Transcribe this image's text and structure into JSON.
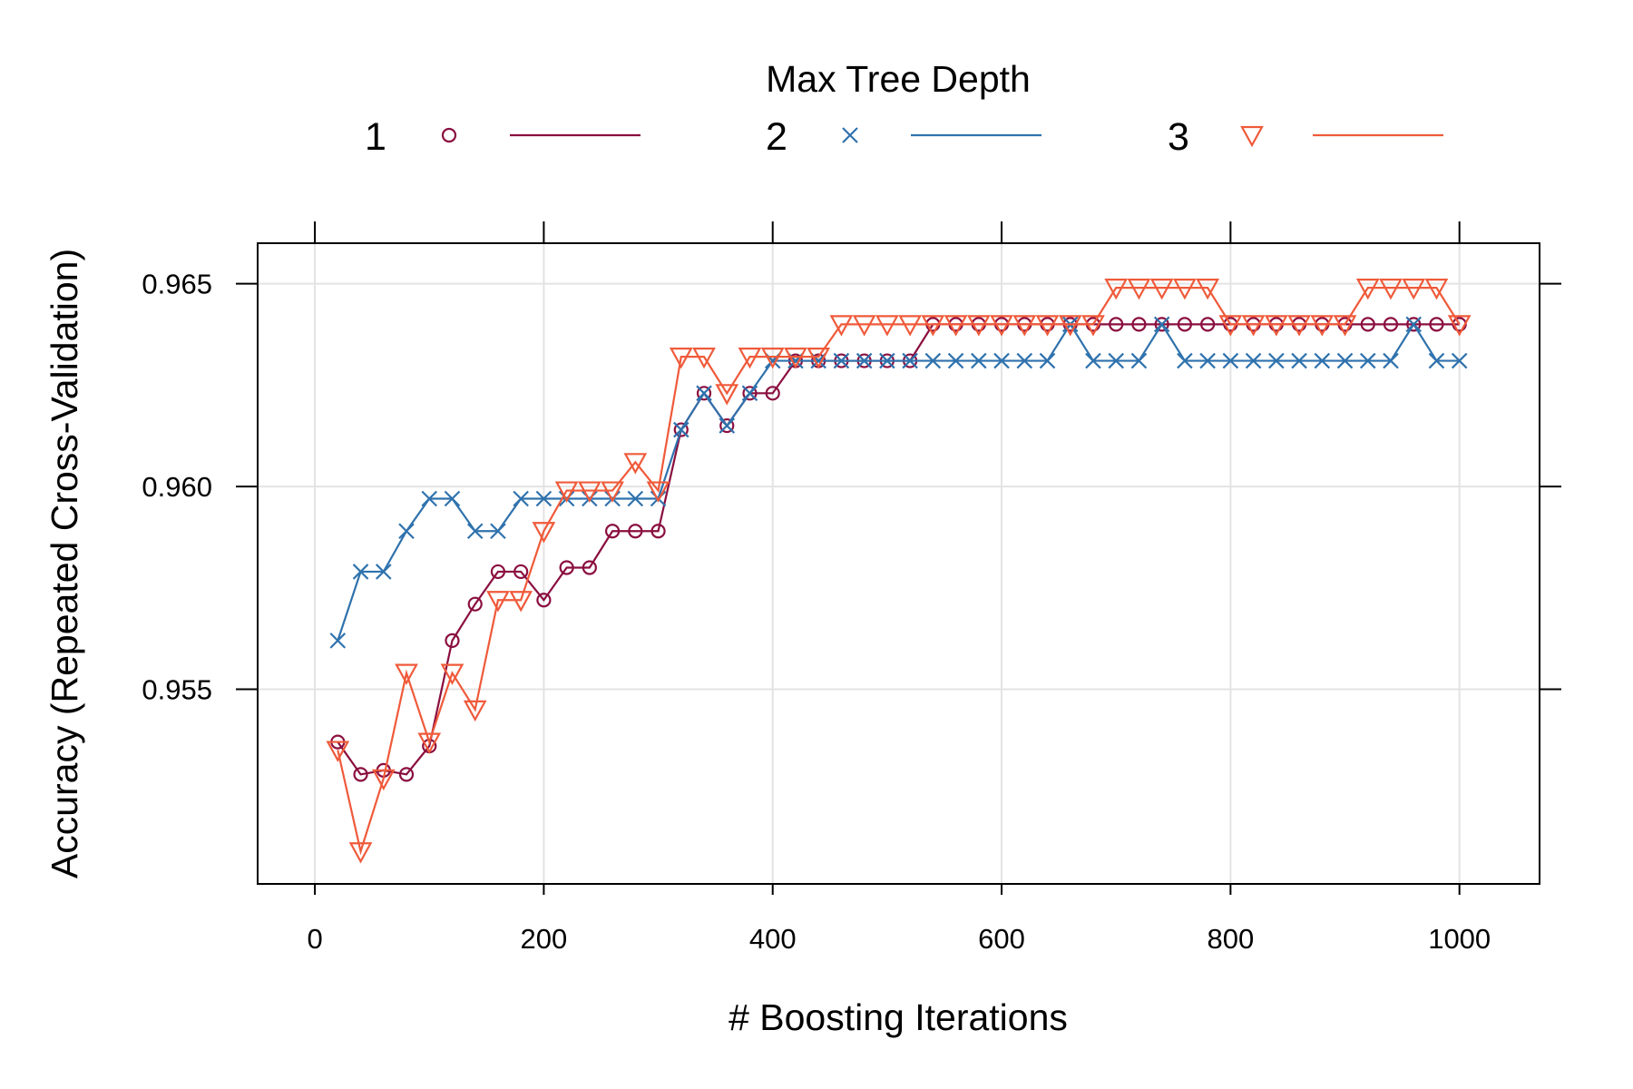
{
  "chart_data": {
    "type": "line",
    "legend_title": "Max Tree Depth",
    "legend_placement": "top",
    "xlabel": "# Boosting Iterations",
    "ylabel": "Accuracy (Repeated Cross-Validation)",
    "xlim": [
      -50,
      1070
    ],
    "ylim": [
      0.9502,
      0.966
    ],
    "x_ticks": [
      0,
      200,
      400,
      600,
      800,
      1000
    ],
    "y_ticks": [
      0.955,
      0.96,
      0.965
    ],
    "x_tick_labels": [
      "0",
      "200",
      "400",
      "600",
      "800",
      "1000"
    ],
    "y_tick_labels": [
      "0.955",
      "0.960",
      "0.965"
    ],
    "grid": true,
    "x": [
      20,
      40,
      60,
      80,
      100,
      120,
      140,
      160,
      180,
      200,
      220,
      240,
      260,
      280,
      300,
      320,
      340,
      360,
      380,
      400,
      420,
      440,
      460,
      480,
      500,
      520,
      540,
      560,
      580,
      600,
      620,
      640,
      660,
      680,
      700,
      720,
      740,
      760,
      780,
      800,
      820,
      840,
      860,
      880,
      900,
      920,
      940,
      960,
      980,
      1000
    ],
    "series": [
      {
        "name": "1",
        "color": "#8a0e3f",
        "marker": "circle",
        "values": [
          0.9537,
          0.9529,
          0.953,
          0.9529,
          0.9536,
          0.9562,
          0.9571,
          0.9579,
          0.9579,
          0.9572,
          0.958,
          0.958,
          0.9589,
          0.9589,
          0.9589,
          0.9614,
          0.9623,
          0.9615,
          0.9623,
          0.9623,
          0.9631,
          0.9631,
          0.9631,
          0.9631,
          0.9631,
          0.9631,
          0.964,
          0.964,
          0.964,
          0.964,
          0.964,
          0.964,
          0.964,
          0.964,
          0.964,
          0.964,
          0.964,
          0.964,
          0.964,
          0.964,
          0.964,
          0.964,
          0.964,
          0.964,
          0.964,
          0.964,
          0.964,
          0.964,
          0.964,
          0.964
        ]
      },
      {
        "name": "2",
        "color": "#2f72ad",
        "marker": "x",
        "values": [
          0.9562,
          0.9579,
          0.9579,
          0.9589,
          0.9597,
          0.9597,
          0.9589,
          0.9589,
          0.9597,
          0.9597,
          0.9597,
          0.9597,
          0.9597,
          0.9597,
          0.9597,
          0.9614,
          0.9623,
          0.9615,
          0.9623,
          0.9631,
          0.9631,
          0.9631,
          0.9631,
          0.9631,
          0.9631,
          0.9631,
          0.9631,
          0.9631,
          0.9631,
          0.9631,
          0.9631,
          0.9631,
          0.964,
          0.9631,
          0.9631,
          0.9631,
          0.964,
          0.9631,
          0.9631,
          0.9631,
          0.9631,
          0.9631,
          0.9631,
          0.9631,
          0.9631,
          0.9631,
          0.9631,
          0.964,
          0.9631,
          0.9631
        ]
      },
      {
        "name": "3",
        "color": "#ef5a3a",
        "marker": "triangle-down",
        "values": [
          0.9535,
          0.951,
          0.9528,
          0.9554,
          0.9537,
          0.9554,
          0.9545,
          0.9572,
          0.9572,
          0.9589,
          0.9599,
          0.9599,
          0.9599,
          0.9606,
          0.9599,
          0.9632,
          0.9632,
          0.9623,
          0.9632,
          0.9632,
          0.9632,
          0.9632,
          0.964,
          0.964,
          0.964,
          0.964,
          0.964,
          0.964,
          0.964,
          0.964,
          0.964,
          0.964,
          0.964,
          0.964,
          0.9649,
          0.9649,
          0.9649,
          0.9649,
          0.9649,
          0.964,
          0.964,
          0.964,
          0.964,
          0.964,
          0.964,
          0.9649,
          0.9649,
          0.9649,
          0.9649,
          0.964
        ]
      }
    ]
  }
}
